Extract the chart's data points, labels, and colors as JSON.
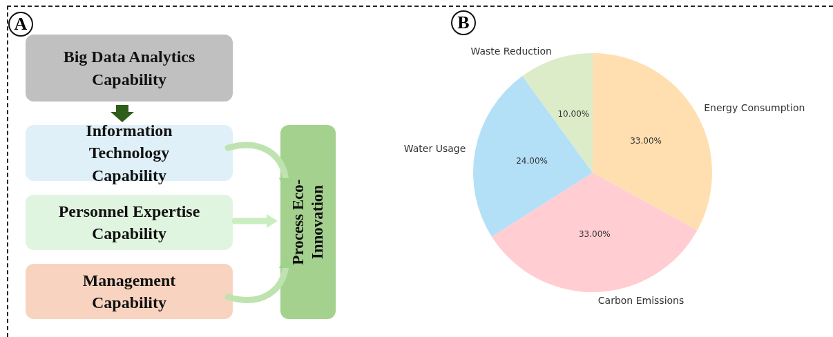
{
  "chart_data": [
    {
      "type": "other",
      "title": "A",
      "annotations": [
        "Big Data Analytics Capability",
        "Information Technology Capability",
        "Personnel Expertise Capability",
        "Management Capability",
        "Process Eco-Innovation"
      ]
    },
    {
      "type": "pie",
      "title": "B",
      "categories": [
        "Energy Consumption",
        "Carbon Emissions",
        "Water Usage",
        "Waste Reduction"
      ],
      "values": [
        33,
        33,
        24,
        10
      ],
      "colors": [
        "#ffdfb0",
        "#ffcdd2",
        "#b3e0f7",
        "#dcebc8"
      ],
      "value_labels": [
        "33.00%",
        "33.00%",
        "24.00%",
        "10.00%"
      ]
    }
  ]
}
